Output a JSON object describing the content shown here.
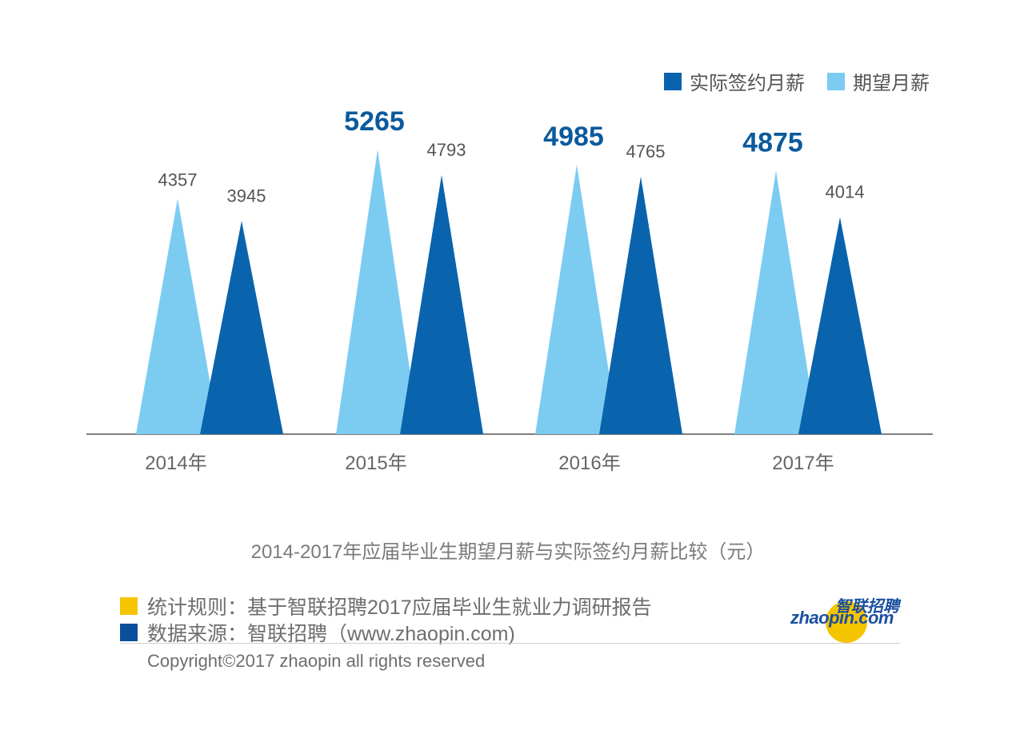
{
  "colors": {
    "actual": "#0a63ad",
    "expected": "#7cccf2",
    "highlight_label": "#0a5a9c",
    "normal_label": "#555555",
    "note_yellow": "#f7c400",
    "note_blue": "#0b4f9c"
  },
  "legend": {
    "actual_label": "实际签约月薪",
    "expected_label": "期望月薪"
  },
  "chart_data": {
    "type": "bar",
    "categories": [
      "2014年",
      "2015年",
      "2016年",
      "2017年"
    ],
    "series": [
      {
        "name": "期望月薪",
        "values": [
          4357,
          5265,
          4985,
          4875
        ]
      },
      {
        "name": "实际签约月薪",
        "values": [
          3945,
          4793,
          4765,
          4014
        ]
      }
    ],
    "highlight_expected_from_index": 1,
    "ylim": [
      0,
      5600
    ],
    "grid": false,
    "legend_position": "top-right",
    "title": "2014-2017年应届毕业生期望月薪与实际签约月薪比较（元）"
  },
  "notes": {
    "rule": "统计规则：基于智联招聘2017应届毕业生就业力调研报告",
    "source": "数据来源：智联招聘（www.zhaopin.com)"
  },
  "copyright": "Copyright©2017 zhaopin all rights reserved",
  "logo": {
    "cn": "智联招聘",
    "en": "zhaopin.com"
  }
}
